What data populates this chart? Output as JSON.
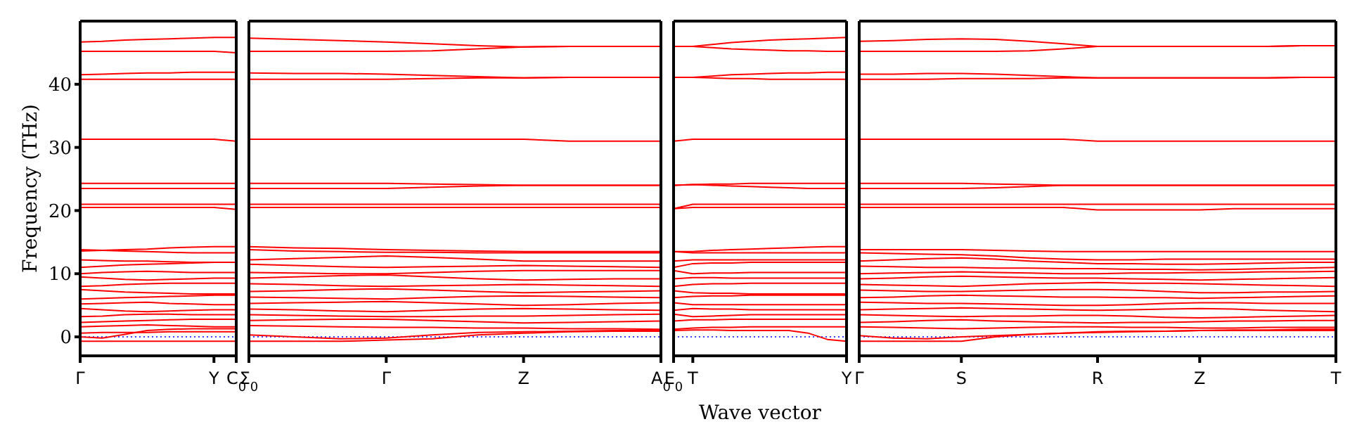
{
  "chart_data": [
    {
      "type": "line",
      "ylabel": "Frequency (THz)",
      "color": "#ff0000",
      "categories": [
        "Γ",
        null,
        null,
        null,
        null,
        null,
        "Y",
        "C$_{0}$"
      ],
      "ylim": [
        -3,
        50
      ],
      "yticks": [
        0,
        10,
        20,
        30,
        40
      ],
      "ref_lines": [
        {
          "axis": "y",
          "value": 0,
          "color": "#0000ff",
          "line_style": "dotted"
        }
      ],
      "series": [
        {
          "values": [
            46.7,
            46.8,
            47.0,
            47.1,
            47.2,
            47.3,
            47.4,
            47.4
          ]
        },
        {
          "values": [
            45.2,
            45.2,
            45.2,
            45.2,
            45.2,
            45.2,
            45.2,
            45.0
          ]
        },
        {
          "values": [
            41.5,
            41.6,
            41.7,
            41.8,
            41.8,
            41.9,
            41.9,
            41.9
          ]
        },
        {
          "values": [
            40.8,
            40.8,
            40.8,
            40.8,
            40.8,
            40.8,
            40.8,
            40.8
          ]
        },
        {
          "values": [
            31.3,
            31.3,
            31.3,
            31.3,
            31.3,
            31.3,
            31.3,
            31.0
          ]
        },
        {
          "values": [
            24.3,
            24.3,
            24.3,
            24.3,
            24.3,
            24.3,
            24.3,
            24.3
          ]
        },
        {
          "values": [
            23.5,
            23.5,
            23.5,
            23.5,
            23.5,
            23.5,
            23.5,
            23.5
          ]
        },
        {
          "values": [
            21.0,
            21.0,
            21.0,
            21.0,
            21.0,
            21.0,
            21.0,
            21.0
          ]
        },
        {
          "values": [
            20.5,
            20.5,
            20.5,
            20.5,
            20.5,
            20.5,
            20.5,
            20.2
          ]
        },
        {
          "values": [
            13.6,
            13.7,
            13.8,
            13.9,
            14.1,
            14.2,
            14.3,
            14.3
          ]
        },
        {
          "values": [
            13.8,
            13.7,
            13.6,
            13.5,
            13.4,
            13.3,
            13.3,
            13.3
          ]
        },
        {
          "values": [
            12.2,
            12.1,
            12.0,
            12.0,
            11.9,
            11.8,
            11.8,
            11.8
          ]
        },
        {
          "values": [
            11.0,
            11.2,
            11.4,
            11.5,
            11.6,
            11.7,
            11.8,
            11.8
          ]
        },
        {
          "values": [
            10.0,
            10.2,
            10.3,
            10.4,
            10.3,
            10.2,
            10.2,
            10.2
          ]
        },
        {
          "values": [
            9.5,
            9.3,
            9.1,
            9.0,
            9.1,
            9.2,
            9.3,
            9.3
          ]
        },
        {
          "values": [
            8.0,
            8.1,
            8.3,
            8.4,
            8.5,
            8.5,
            8.5,
            8.5
          ]
        },
        {
          "values": [
            7.5,
            7.3,
            7.1,
            7.0,
            6.9,
            6.8,
            6.8,
            6.8
          ]
        },
        {
          "values": [
            6.0,
            6.1,
            6.2,
            6.3,
            6.4,
            6.5,
            6.6,
            6.6
          ]
        },
        {
          "values": [
            5.2,
            5.3,
            5.4,
            5.5,
            5.3,
            5.2,
            5.1,
            5.1
          ]
        },
        {
          "values": [
            4.5,
            4.3,
            4.1,
            4.0,
            4.1,
            4.2,
            4.3,
            4.3
          ]
        },
        {
          "values": [
            3.2,
            3.3,
            3.5,
            3.6,
            3.6,
            3.5,
            3.5,
            3.5
          ]
        },
        {
          "values": [
            2.3,
            2.4,
            2.5,
            2.6,
            2.7,
            2.8,
            2.8,
            2.8
          ]
        },
        {
          "values": [
            1.6,
            1.7,
            1.8,
            1.9,
            1.8,
            1.7,
            1.6,
            1.6
          ]
        },
        {
          "values": [
            -0.7,
            -0.7,
            -0.7,
            -0.7,
            -0.7,
            -0.7,
            -0.7,
            -0.7
          ]
        },
        {
          "values": [
            0,
            -0.2,
            0.4,
            1.0,
            1.2,
            1.3,
            1.3,
            1.3
          ]
        },
        {
          "values": [
            0.6,
            0.7,
            0.7,
            0.7,
            0.8,
            0.8,
            0.8,
            0.8
          ]
        }
      ]
    },
    {
      "type": "line",
      "color": "#ff0000",
      "categories": [
        "Σ$_{0}$",
        null,
        null,
        "Γ",
        null,
        null,
        "Z",
        null,
        null,
        "A$_{0}$"
      ],
      "ylim": [
        -3,
        50
      ],
      "yticks": [
        0,
        10,
        20,
        30,
        40
      ],
      "tick_labels": "x",
      "ref_lines": [
        {
          "axis": "y",
          "value": 0,
          "color": "#0000ff",
          "line_style": "dotted"
        }
      ],
      "series": [
        {
          "values": [
            47.3,
            47.1,
            46.9,
            46.7,
            46.4,
            46.1,
            45.9,
            46.0,
            46.0,
            46.0
          ]
        },
        {
          "values": [
            45.2,
            45.2,
            45.2,
            45.2,
            45.3,
            45.6,
            45.9,
            46.0,
            46.0,
            46.0
          ]
        },
        {
          "values": [
            41.8,
            41.7,
            41.7,
            41.6,
            41.4,
            41.2,
            41.0,
            41.1,
            41.1,
            41.1
          ]
        },
        {
          "values": [
            40.8,
            40.8,
            40.8,
            40.8,
            40.9,
            41.0,
            41.0,
            41.1,
            41.1,
            41.1
          ]
        },
        {
          "values": [
            31.3,
            31.3,
            31.3,
            31.3,
            31.3,
            31.3,
            31.3,
            31.0,
            31.0,
            31.0
          ]
        },
        {
          "values": [
            24.3,
            24.3,
            24.3,
            24.3,
            24.2,
            24.1,
            24.0,
            24.0,
            24.0,
            24.0
          ]
        },
        {
          "values": [
            23.5,
            23.5,
            23.5,
            23.5,
            23.7,
            23.9,
            24.0,
            24.0,
            24.0,
            24.0
          ]
        },
        {
          "values": [
            21.0,
            21.0,
            21.0,
            21.0,
            21.0,
            21.0,
            21.0,
            21.0,
            21.0,
            21.0
          ]
        },
        {
          "values": [
            20.5,
            20.5,
            20.5,
            20.5,
            20.5,
            20.5,
            20.5,
            20.5,
            20.5,
            20.5
          ]
        },
        {
          "values": [
            14.3,
            14.1,
            14.0,
            13.8,
            13.7,
            13.6,
            13.5,
            13.5,
            13.5,
            13.5
          ]
        },
        {
          "values": [
            13.8,
            13.6,
            13.5,
            13.4,
            13.4,
            13.3,
            13.3,
            13.3,
            13.3,
            13.3
          ]
        },
        {
          "values": [
            12.2,
            12.4,
            12.6,
            12.8,
            12.6,
            12.3,
            12.0,
            12.0,
            12.0,
            12.0
          ]
        },
        {
          "values": [
            11.5,
            11.3,
            11.1,
            11.0,
            11.1,
            11.2,
            11.3,
            11.2,
            11.1,
            11.0
          ]
        },
        {
          "values": [
            10.2,
            10.1,
            10.0,
            10.0,
            10.2,
            10.4,
            10.5,
            10.5,
            10.5,
            10.5
          ]
        },
        {
          "values": [
            9.3,
            9.5,
            9.7,
            9.8,
            9.5,
            9.2,
            9.0,
            9.1,
            9.2,
            9.2
          ]
        },
        {
          "values": [
            8.4,
            8.3,
            8.1,
            8.0,
            8.1,
            8.2,
            8.3,
            8.2,
            8.1,
            8.0
          ]
        },
        {
          "values": [
            7.2,
            7.3,
            7.5,
            7.6,
            7.4,
            7.2,
            7.0,
            7.1,
            7.2,
            7.3
          ]
        },
        {
          "values": [
            6.3,
            6.2,
            6.1,
            6.0,
            6.2,
            6.4,
            6.5,
            6.4,
            6.3,
            6.2
          ]
        },
        {
          "values": [
            5.3,
            5.4,
            5.5,
            5.6,
            5.4,
            5.2,
            5.0,
            5.1,
            5.3,
            5.4
          ]
        },
        {
          "values": [
            4.4,
            4.3,
            4.1,
            4.0,
            4.2,
            4.4,
            4.5,
            4.4,
            4.3,
            4.2
          ]
        },
        {
          "values": [
            3.5,
            3.4,
            3.3,
            3.2,
            3.2,
            3.3,
            3.3,
            3.4,
            3.5,
            3.6
          ]
        },
        {
          "values": [
            2.6,
            2.7,
            2.8,
            2.8,
            2.6,
            2.4,
            2.2,
            2.3,
            2.4,
            2.5
          ]
        },
        {
          "values": [
            1.8,
            1.7,
            1.6,
            1.5,
            1.5,
            1.4,
            1.4,
            1.3,
            1.3,
            1.2
          ]
        },
        {
          "values": [
            -0.7,
            -0.7,
            -0.7,
            -0.5,
            -0.3,
            0.3,
            0.6,
            0.8,
            0.9,
            0.9
          ]
        },
        {
          "values": [
            0.3,
            0,
            -0.3,
            -0.2,
            0.3,
            0.7,
            0.8,
            0.9,
            1.0,
            1.0
          ]
        }
      ]
    },
    {
      "type": "line",
      "xlabel": "Wave vector",
      "color": "#ff0000",
      "categories": [
        "E$_{0}$",
        "T",
        null,
        null,
        null,
        null,
        null,
        null,
        null,
        "Y"
      ],
      "ylim": [
        -3,
        50
      ],
      "yticks": [
        0,
        10,
        20,
        30,
        40
      ],
      "tick_labels": "x",
      "ref_lines": [
        {
          "axis": "y",
          "value": 0,
          "color": "#0000ff",
          "line_style": "dotted"
        }
      ],
      "series": [
        {
          "values": [
            46.0,
            46.0,
            46.3,
            46.6,
            46.8,
            47.0,
            47.1,
            47.2,
            47.3,
            47.4
          ]
        },
        {
          "values": [
            46.0,
            46.0,
            45.8,
            45.6,
            45.5,
            45.4,
            45.3,
            45.3,
            45.2,
            45.2
          ]
        },
        {
          "values": [
            41.1,
            41.1,
            41.3,
            41.5,
            41.6,
            41.7,
            41.8,
            41.8,
            41.9,
            41.9
          ]
        },
        {
          "values": [
            41.1,
            41.1,
            41.0,
            40.9,
            40.9,
            40.8,
            40.8,
            40.8,
            40.8,
            40.8
          ]
        },
        {
          "values": [
            31.0,
            31.3,
            31.3,
            31.3,
            31.3,
            31.3,
            31.3,
            31.3,
            31.3,
            31.3
          ]
        },
        {
          "values": [
            24.0,
            24.1,
            24.2,
            24.2,
            24.3,
            24.3,
            24.3,
            24.3,
            24.3,
            24.3
          ]
        },
        {
          "values": [
            24.0,
            24.1,
            24.0,
            23.9,
            23.8,
            23.7,
            23.6,
            23.5,
            23.5,
            23.5
          ]
        },
        {
          "values": [
            20.3,
            21.0,
            21.0,
            21.0,
            21.0,
            21.0,
            21.0,
            21.0,
            21.0,
            21.0
          ]
        },
        {
          "values": [
            20.3,
            20.5,
            20.5,
            20.5,
            20.5,
            20.5,
            20.5,
            20.5,
            20.5,
            20.5
          ]
        },
        {
          "values": [
            13.5,
            13.5,
            13.7,
            13.8,
            13.9,
            14.0,
            14.1,
            14.2,
            14.3,
            14.3
          ]
        },
        {
          "values": [
            13.5,
            13.3,
            13.3,
            13.3,
            13.3,
            13.3,
            13.3,
            13.3,
            13.3,
            13.3
          ]
        },
        {
          "values": [
            12.0,
            12.2,
            12.2,
            12.2,
            12.2,
            12.2,
            12.2,
            12.2,
            12.2,
            12.2
          ]
        },
        {
          "values": [
            11.0,
            11.6,
            11.7,
            11.7,
            11.8,
            11.8,
            11.8,
            11.8,
            11.8,
            11.8
          ]
        },
        {
          "values": [
            10.5,
            10.0,
            10.1,
            10.1,
            10.2,
            10.2,
            10.2,
            10.2,
            10.2,
            10.2
          ]
        },
        {
          "values": [
            9.2,
            9.4,
            9.4,
            9.3,
            9.3,
            9.3,
            9.3,
            9.3,
            9.3,
            9.3
          ]
        },
        {
          "values": [
            8.0,
            8.3,
            8.4,
            8.4,
            8.5,
            8.5,
            8.5,
            8.5,
            8.5,
            8.5
          ]
        },
        {
          "values": [
            7.3,
            7.0,
            6.9,
            6.9,
            6.8,
            6.8,
            6.8,
            6.8,
            6.8,
            6.8
          ]
        },
        {
          "values": [
            6.2,
            6.4,
            6.5,
            6.5,
            6.6,
            6.6,
            6.6,
            6.6,
            6.6,
            6.6
          ]
        },
        {
          "values": [
            5.4,
            5.1,
            5.1,
            5.1,
            5.1,
            5.1,
            5.1,
            5.1,
            5.1,
            5.1
          ]
        },
        {
          "values": [
            4.2,
            4.5,
            4.4,
            4.4,
            4.3,
            4.3,
            4.3,
            4.3,
            4.3,
            4.3
          ]
        },
        {
          "values": [
            3.6,
            3.2,
            3.3,
            3.4,
            3.5,
            3.5,
            3.5,
            3.5,
            3.5,
            3.5
          ]
        },
        {
          "values": [
            2.5,
            2.7,
            2.7,
            2.8,
            2.8,
            2.8,
            2.8,
            2.8,
            2.8,
            2.8
          ]
        },
        {
          "values": [
            1.2,
            1.4,
            1.5,
            1.5,
            1.6,
            1.6,
            1.6,
            1.6,
            1.6,
            1.6
          ]
        },
        {
          "values": [
            1.0,
            1.1,
            1.1,
            1.0,
            1.0,
            1.0,
            1.0,
            0.6,
            -0.4,
            -0.7
          ]
        }
      ]
    },
    {
      "type": "line",
      "color": "#ff0000",
      "categories": [
        "Γ",
        null,
        null,
        "S",
        null,
        null,
        null,
        "R",
        null,
        null,
        "Z",
        null,
        null,
        null,
        "T"
      ],
      "ylim": [
        -3,
        50
      ],
      "yticks": [
        0,
        10,
        20,
        30,
        40
      ],
      "tick_labels": "x",
      "ref_lines": [
        {
          "axis": "y",
          "value": 0,
          "color": "#0000ff",
          "line_style": "dotted"
        }
      ],
      "series": [
        {
          "values": [
            46.8,
            46.9,
            47.1,
            47.2,
            47.1,
            46.8,
            46.4,
            46.0,
            46.0,
            46.0,
            46.0,
            46.0,
            46.0,
            46.1,
            46.1
          ]
        },
        {
          "values": [
            45.2,
            45.2,
            45.2,
            45.2,
            45.2,
            45.3,
            45.6,
            46.0,
            46.0,
            46.0,
            46.0,
            46.0,
            46.0,
            46.1,
            46.1
          ]
        },
        {
          "values": [
            41.6,
            41.6,
            41.7,
            41.7,
            41.6,
            41.4,
            41.2,
            41.0,
            41.0,
            41.0,
            41.0,
            41.0,
            41.0,
            41.1,
            41.1
          ]
        },
        {
          "values": [
            40.8,
            40.8,
            40.8,
            40.9,
            40.9,
            40.9,
            41.0,
            41.0,
            41.0,
            41.0,
            41.0,
            41.0,
            41.0,
            41.1,
            41.1
          ]
        },
        {
          "values": [
            31.3,
            31.3,
            31.3,
            31.3,
            31.3,
            31.3,
            31.3,
            31.0,
            31.0,
            31.0,
            31.0,
            31.0,
            31.0,
            31.0,
            31.0
          ]
        },
        {
          "values": [
            24.3,
            24.3,
            24.3,
            24.3,
            24.2,
            24.1,
            24.0,
            24.0,
            24.0,
            24.0,
            24.0,
            24.0,
            24.0,
            24.0,
            24.0
          ]
        },
        {
          "values": [
            23.5,
            23.5,
            23.5,
            23.5,
            23.6,
            23.8,
            24.0,
            24.0,
            24.0,
            24.0,
            24.0,
            24.0,
            24.0,
            24.0,
            24.0
          ]
        },
        {
          "values": [
            21.0,
            21.0,
            21.0,
            21.0,
            21.0,
            21.0,
            21.0,
            21.0,
            21.0,
            21.0,
            21.0,
            21.0,
            21.0,
            21.0,
            21.0
          ]
        },
        {
          "values": [
            20.5,
            20.5,
            20.5,
            20.5,
            20.5,
            20.5,
            20.5,
            20.1,
            20.1,
            20.1,
            20.1,
            20.3,
            20.3,
            20.3,
            20.3
          ]
        },
        {
          "values": [
            13.8,
            13.8,
            13.8,
            13.8,
            13.7,
            13.6,
            13.5,
            13.5,
            13.5,
            13.5,
            13.5,
            13.5,
            13.5,
            13.5,
            13.5
          ]
        },
        {
          "values": [
            13.3,
            13.2,
            13.1,
            13.0,
            12.8,
            12.5,
            12.3,
            12.2,
            12.2,
            12.3,
            12.3,
            12.3,
            12.3,
            12.3,
            12.3
          ]
        },
        {
          "values": [
            12.0,
            12.2,
            12.4,
            12.5,
            12.3,
            12.0,
            11.8,
            11.6,
            11.6,
            11.5,
            11.5,
            11.6,
            11.7,
            11.8,
            11.8
          ]
        },
        {
          "values": [
            11.2,
            11.1,
            11.0,
            11.0,
            10.9,
            10.9,
            10.8,
            10.8,
            10.7,
            10.7,
            10.6,
            10.7,
            10.8,
            10.9,
            11.0
          ]
        },
        {
          "values": [
            10.0,
            10.1,
            10.2,
            10.3,
            10.2,
            10.1,
            10.0,
            10.0,
            10.1,
            10.1,
            10.2,
            10.2,
            10.3,
            10.3,
            10.4
          ]
        },
        {
          "values": [
            9.2,
            9.3,
            9.5,
            9.6,
            9.5,
            9.4,
            9.3,
            9.3,
            9.2,
            9.1,
            9.0,
            9.1,
            9.2,
            9.3,
            9.4
          ]
        },
        {
          "values": [
            8.3,
            8.2,
            8.1,
            8.0,
            8.2,
            8.4,
            8.5,
            8.6,
            8.5,
            8.5,
            8.4,
            8.3,
            8.2,
            8.1,
            8.0
          ]
        },
        {
          "values": [
            7.4,
            7.3,
            7.2,
            7.2,
            7.3,
            7.4,
            7.5,
            7.5,
            7.4,
            7.2,
            7.0,
            7.0,
            7.1,
            7.1,
            7.2
          ]
        },
        {
          "values": [
            6.2,
            6.3,
            6.5,
            6.6,
            6.5,
            6.4,
            6.3,
            6.3,
            6.2,
            6.2,
            6.1,
            6.2,
            6.3,
            6.4,
            6.5
          ]
        },
        {
          "values": [
            5.5,
            5.4,
            5.3,
            5.3,
            5.2,
            5.1,
            5.0,
            5.0,
            5.1,
            5.3,
            5.4,
            5.4,
            5.3,
            5.3,
            5.3
          ]
        },
        {
          "values": [
            4.3,
            4.4,
            4.5,
            4.6,
            4.5,
            4.4,
            4.3,
            4.2,
            4.3,
            4.4,
            4.5,
            4.4,
            4.2,
            4.1,
            4.0
          ]
        },
        {
          "values": [
            3.5,
            3.4,
            3.3,
            3.2,
            3.3,
            3.3,
            3.4,
            3.4,
            3.3,
            3.1,
            3.0,
            3.1,
            3.2,
            3.3,
            3.4
          ]
        },
        {
          "values": [
            2.3,
            2.4,
            2.6,
            2.7,
            2.5,
            2.4,
            2.3,
            2.2,
            2.3,
            2.3,
            2.4,
            2.5,
            2.5,
            2.6,
            2.6
          ]
        },
        {
          "values": [
            1.6,
            1.5,
            1.4,
            1.3,
            1.4,
            1.5,
            1.6,
            1.6,
            1.5,
            1.5,
            1.4,
            1.4,
            1.5,
            1.5,
            1.5
          ]
        },
        {
          "values": [
            -0.7,
            -0.7,
            -0.7,
            -0.7,
            0.0,
            0.4,
            0.6,
            0.8,
            0.9,
            0.9,
            1.0,
            1.0,
            1.0,
            1.0,
            1.0
          ]
        },
        {
          "values": [
            0.2,
            -0.2,
            -0.3,
            0,
            0.2,
            0.4,
            0.6,
            0.7,
            0.8,
            0.9,
            1.0,
            1.1,
            1.1,
            1.2,
            1.2
          ]
        }
      ]
    }
  ]
}
